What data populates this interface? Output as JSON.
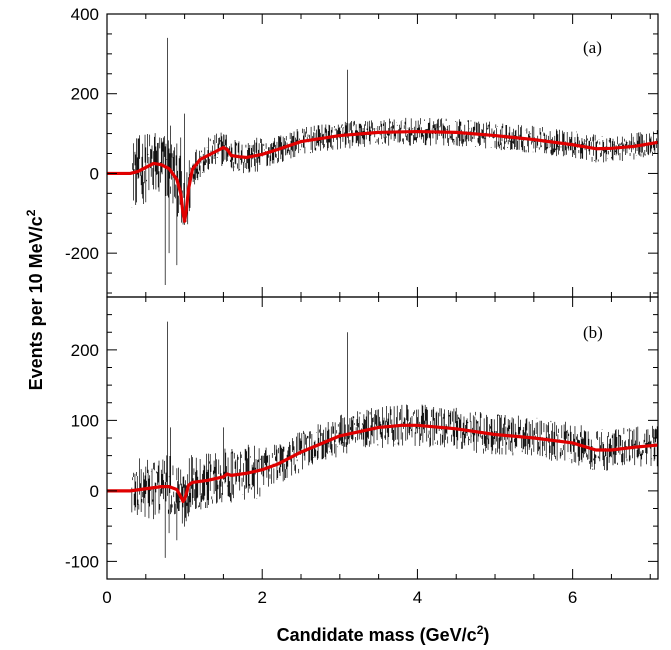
{
  "chart_data": [
    {
      "type": "line",
      "panel_label": "(a)",
      "xlim": [
        0,
        7.1
      ],
      "ylim": [
        -310,
        400
      ],
      "yticks": [
        -200,
        0,
        200,
        400
      ],
      "ytick_labels": [
        "-200",
        "0",
        "200",
        "400"
      ],
      "xticks": [
        0,
        2,
        4,
        6
      ],
      "series": [
        {
          "name": "",
          "style": "histogram",
          "x": [
            0.3,
            0.5,
            0.6,
            0.7,
            0.75,
            0.78,
            0.8,
            0.82,
            0.9,
            0.95,
            1.0,
            1.05,
            1.1,
            1.3,
            1.5,
            1.6,
            1.8,
            2.0,
            2.5,
            3.0,
            3.1,
            3.5,
            4.0,
            4.5,
            5.0,
            5.5,
            6.0,
            6.5,
            7.0,
            7.1
          ],
          "y": [
            0,
            20,
            -40,
            80,
            -280,
            340,
            -200,
            120,
            -230,
            90,
            150,
            -60,
            20,
            30,
            60,
            40,
            40,
            50,
            80,
            95,
            260,
            105,
            110,
            105,
            95,
            85,
            75,
            65,
            72,
            80
          ]
        },
        {
          "name": "",
          "style": "fit",
          "color": "#e00000",
          "x": [
            0,
            0.3,
            0.4,
            0.5,
            0.6,
            0.7,
            0.8,
            0.9,
            0.95,
            0.98,
            1.0,
            1.02,
            1.05,
            1.1,
            1.2,
            1.3,
            1.4,
            1.5,
            1.55,
            1.6,
            1.7,
            1.8,
            2.0,
            2.2,
            2.5,
            3.0,
            3.5,
            4.0,
            4.5,
            5.0,
            5.5,
            6.0,
            6.3,
            6.5,
            6.8,
            7.1
          ],
          "y": [
            0,
            0,
            5,
            15,
            25,
            22,
            12,
            -15,
            -50,
            -100,
            -120,
            -95,
            -40,
            10,
            35,
            45,
            55,
            65,
            60,
            45,
            42,
            40,
            48,
            60,
            80,
            95,
            103,
            105,
            103,
            95,
            85,
            72,
            62,
            63,
            68,
            78
          ]
        }
      ]
    },
    {
      "type": "line",
      "panel_label": "(b)",
      "xlim": [
        0,
        7.1
      ],
      "ylim": [
        -125,
        275
      ],
      "yticks": [
        -100,
        0,
        100,
        200
      ],
      "ytick_labels": [
        "-100",
        "0",
        "100",
        "200"
      ],
      "xticks": [
        0,
        2,
        4,
        6
      ],
      "xtick_labels": [
        "0",
        "2",
        "4",
        "6"
      ],
      "series": [
        {
          "name": "",
          "style": "histogram",
          "x": [
            0.3,
            0.5,
            0.6,
            0.7,
            0.75,
            0.78,
            0.8,
            0.82,
            0.9,
            1.0,
            1.1,
            1.3,
            1.5,
            1.8,
            2.0,
            2.5,
            3.0,
            3.1,
            3.5,
            4.0,
            4.5,
            5.0,
            5.5,
            6.0,
            6.5,
            7.0,
            7.1
          ],
          "y": [
            0,
            5,
            -40,
            30,
            -95,
            240,
            -60,
            90,
            -70,
            -20,
            20,
            30,
            90,
            40,
            50,
            70,
            85,
            225,
            95,
            95,
            90,
            85,
            75,
            70,
            55,
            60,
            62
          ]
        },
        {
          "name": "",
          "style": "fit",
          "color": "#e00000",
          "x": [
            0,
            0.3,
            0.5,
            0.7,
            0.8,
            0.9,
            0.95,
            0.98,
            1.0,
            1.02,
            1.05,
            1.1,
            1.3,
            1.5,
            1.55,
            1.6,
            1.8,
            2.0,
            2.2,
            2.5,
            3.0,
            3.5,
            3.8,
            4.0,
            4.5,
            5.0,
            5.5,
            6.0,
            6.3,
            6.5,
            6.8,
            7.1
          ],
          "y": [
            0,
            0,
            3,
            6,
            6,
            2,
            -8,
            -15,
            -12,
            -5,
            8,
            12,
            15,
            20,
            24,
            22,
            25,
            30,
            38,
            55,
            78,
            90,
            93,
            93,
            88,
            80,
            75,
            68,
            58,
            58,
            62,
            65
          ]
        }
      ]
    }
  ],
  "axes": {
    "xlabel_prefix": "Candidate mass (GeV/c",
    "xlabel_sup": "2",
    "xlabel_suffix": ")",
    "ylabel_prefix": "Events per 10 MeV/c",
    "ylabel_sup": "2"
  }
}
